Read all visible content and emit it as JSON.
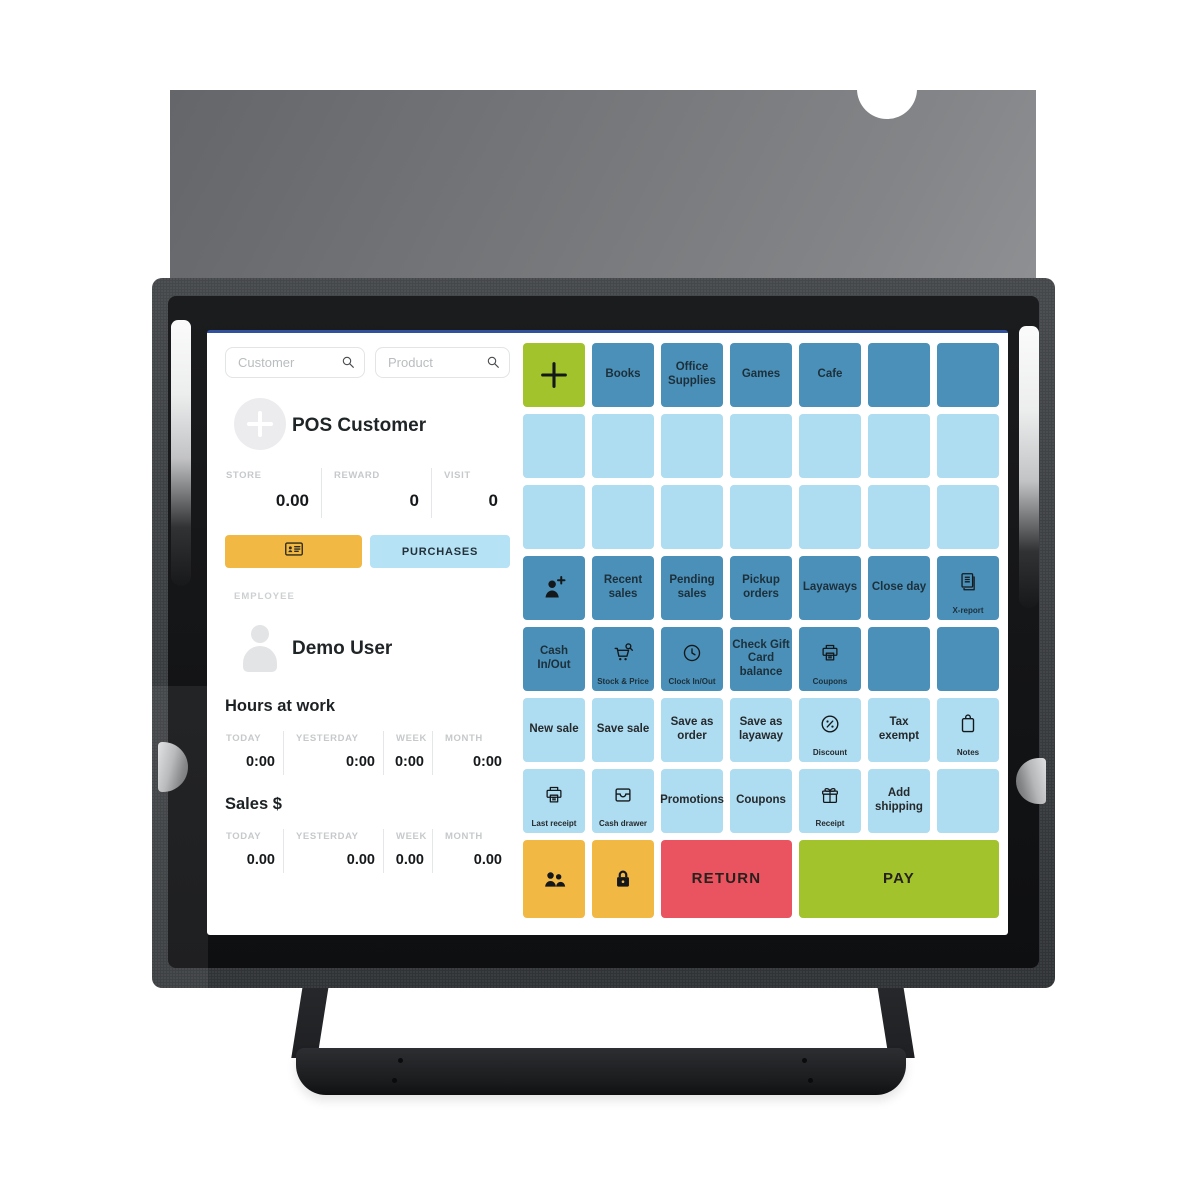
{
  "screen": {
    "search": {
      "customer_placeholder": "Customer",
      "product_placeholder": "Product"
    },
    "customer_section": {
      "title": "POS Customer",
      "stats": [
        {
          "label": "STORE",
          "value": "0.00"
        },
        {
          "label": "REWARD",
          "value": "0"
        },
        {
          "label": "VISIT",
          "value": "0"
        }
      ],
      "purchases_button": "PURCHASES"
    },
    "employee_section": {
      "label": "EMPLOYEE",
      "name": "Demo User"
    },
    "hours_section": {
      "title": "Hours at work",
      "stats": [
        {
          "label": "TODAY",
          "value": "0:00"
        },
        {
          "label": "YESTERDAY",
          "value": "0:00"
        },
        {
          "label": "WEEK",
          "value": "0:00"
        },
        {
          "label": "MONTH",
          "value": "0:00"
        }
      ]
    },
    "sales_section": {
      "title": "Sales $",
      "stats": [
        {
          "label": "TODAY",
          "value": "0.00"
        },
        {
          "label": "YESTERDAY",
          "value": "0.00"
        },
        {
          "label": "WEEK",
          "value": "0.00"
        },
        {
          "label": "MONTH",
          "value": "0.00"
        }
      ]
    },
    "grid": {
      "rows": [
        [
          {
            "icon": "plus",
            "variant": "green",
            "name": "add-product-tile"
          },
          {
            "label": "Books",
            "variant": "med"
          },
          {
            "label": "Office Supplies",
            "variant": "med"
          },
          {
            "label": "Games",
            "variant": "med"
          },
          {
            "label": "Cafe",
            "variant": "med"
          },
          {
            "variant": "med",
            "blank": true
          },
          {
            "variant": "med",
            "blank": true
          }
        ],
        [
          {
            "variant": "light",
            "blank": true
          },
          {
            "variant": "light",
            "blank": true
          },
          {
            "variant": "light",
            "blank": true
          },
          {
            "variant": "light",
            "blank": true
          },
          {
            "variant": "light",
            "blank": true
          },
          {
            "variant": "light",
            "blank": true
          },
          {
            "variant": "light",
            "blank": true
          }
        ],
        [
          {
            "variant": "light",
            "blank": true
          },
          {
            "variant": "light",
            "blank": true
          },
          {
            "variant": "light",
            "blank": true
          },
          {
            "variant": "light",
            "blank": true
          },
          {
            "variant": "light",
            "blank": true
          },
          {
            "variant": "light",
            "blank": true
          },
          {
            "variant": "light",
            "blank": true
          }
        ],
        [
          {
            "icon": "person-add",
            "variant": "med",
            "name": "add-customer-tile"
          },
          {
            "label": "Recent sales",
            "variant": "med"
          },
          {
            "label": "Pending sales",
            "variant": "med"
          },
          {
            "label": "Pickup orders",
            "variant": "med"
          },
          {
            "label": "Layaways",
            "variant": "med"
          },
          {
            "label": "Close day",
            "variant": "med"
          },
          {
            "icon": "report",
            "sub": "X-report",
            "variant": "med"
          }
        ],
        [
          {
            "label": "Cash In/Out",
            "variant": "med"
          },
          {
            "icon": "cart-search",
            "sub": "Stock & Price",
            "variant": "med"
          },
          {
            "icon": "clock",
            "sub": "Clock In/Out",
            "variant": "med"
          },
          {
            "label": "Check Gift Card balance",
            "variant": "med"
          },
          {
            "icon": "printer",
            "sub": "Coupons",
            "variant": "med"
          },
          {
            "variant": "med",
            "blank": true
          },
          {
            "variant": "med",
            "blank": true
          }
        ],
        [
          {
            "label": "New sale",
            "variant": "light"
          },
          {
            "label": "Save sale",
            "variant": "light"
          },
          {
            "label": "Save as order",
            "variant": "light"
          },
          {
            "label": "Save as layaway",
            "variant": "light"
          },
          {
            "icon": "percent",
            "sub": "Discount",
            "variant": "light"
          },
          {
            "label": "Tax exempt",
            "variant": "light"
          },
          {
            "icon": "clipboard",
            "sub": "Notes",
            "variant": "light"
          }
        ],
        [
          {
            "icon": "printer",
            "sub": "Last receipt",
            "variant": "light"
          },
          {
            "icon": "drawer",
            "sub": "Cash drawer",
            "variant": "light"
          },
          {
            "label": "Promotions",
            "variant": "light"
          },
          {
            "label": "Coupons",
            "variant": "light"
          },
          {
            "icon": "gift",
            "sub": "Receipt",
            "variant": "light"
          },
          {
            "label": "Add shipping",
            "variant": "light"
          },
          {
            "variant": "light",
            "blank": true
          }
        ],
        [
          {
            "icon": "people",
            "variant": "yellow",
            "name": "customers-tile"
          },
          {
            "icon": "lock",
            "variant": "yellow",
            "name": "lock-tile"
          },
          {
            "label": "RETURN",
            "variant": "red",
            "span": 2,
            "big": true
          },
          {
            "label": "PAY",
            "variant": "green",
            "span": 3,
            "big": true
          }
        ]
      ]
    }
  },
  "colors": {
    "tile_medium_blue": "#4a90b8",
    "tile_light_blue": "#aedcf0",
    "tile_green": "#a2c32c",
    "tile_yellow": "#f2b844",
    "tile_red": "#ea5460",
    "screen_top_line": "#31519f",
    "purchases_button": "#b5e2f4"
  }
}
